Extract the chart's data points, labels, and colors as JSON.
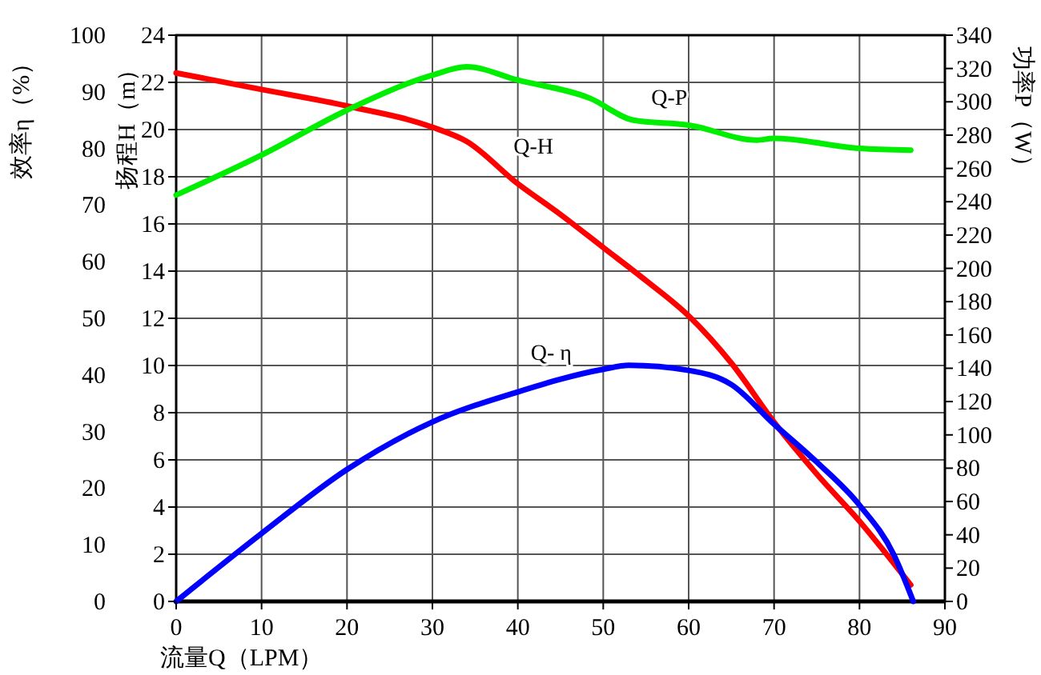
{
  "chart_data": {
    "type": "line",
    "xlabel": "流量Q（LPM）",
    "ylabel": "扬程H（m）",
    "y2label": "功率P（W）",
    "y3label": "效率η（%）",
    "xlim": [
      0,
      90
    ],
    "xticks": [
      0,
      10,
      20,
      30,
      40,
      50,
      60,
      70,
      80,
      90
    ],
    "ylim": [
      0,
      24
    ],
    "yticks": [
      0,
      2,
      4,
      6,
      8,
      10,
      12,
      14,
      16,
      18,
      20,
      22,
      24
    ],
    "y2lim": [
      0,
      340
    ],
    "y2ticks": [
      0,
      20,
      40,
      60,
      80,
      100,
      120,
      140,
      160,
      180,
      200,
      220,
      240,
      260,
      280,
      300,
      320,
      340
    ],
    "y3lim": [
      0,
      100
    ],
    "y3ticks": [
      0,
      10,
      20,
      30,
      40,
      50,
      60,
      70,
      80,
      90,
      100
    ],
    "grid": true,
    "line_style": "solid",
    "marker": "none",
    "series": [
      {
        "name": "Q-H",
        "color": "#ff0000",
        "x": [
          0,
          10,
          20,
          30,
          34,
          40,
          45,
          50,
          55,
          60,
          65,
          70,
          75,
          80,
          86
        ],
        "values": [
          22.4,
          21.7,
          21.0,
          20.1,
          19.5,
          17.7,
          16.4,
          15.0,
          13.6,
          12.1,
          10.1,
          7.6,
          5.4,
          3.4,
          0.7
        ]
      },
      {
        "name": "Q-P",
        "color": "#00ee00",
        "axis": "y2",
        "x": [
          0,
          10,
          20,
          30,
          34,
          40,
          48.5,
          53.5,
          60,
          68,
          70,
          80,
          86
        ],
        "values": [
          244,
          268,
          295,
          316,
          321,
          313,
          302,
          289,
          286,
          277,
          278,
          272,
          271
        ]
      },
      {
        "name": "Q- η",
        "color": "#0000ff",
        "axis": "y3",
        "x": [
          0,
          10,
          20,
          30,
          40,
          50,
          53,
          60,
          65,
          70,
          75,
          80,
          84,
          86.3
        ],
        "values": [
          0,
          12,
          23.3,
          31.7,
          37,
          41,
          41.7,
          40.8,
          38.3,
          31.3,
          24.6,
          17,
          8.3,
          0
        ]
      }
    ]
  }
}
